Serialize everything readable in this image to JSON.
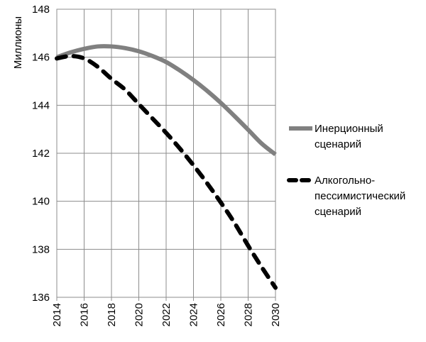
{
  "chart_data": {
    "type": "line",
    "title": "",
    "xlabel": "",
    "ylabel": "Миллионы",
    "xlim": [
      2014,
      2030
    ],
    "ylim": [
      136,
      148
    ],
    "x_ticks": [
      "2014",
      "2016",
      "2018",
      "2020",
      "2022",
      "2024",
      "2026",
      "2028",
      "2030"
    ],
    "y_ticks": [
      "136",
      "138",
      "140",
      "142",
      "144",
      "146",
      "148"
    ],
    "grid": true,
    "legend_position": "right",
    "x": [
      2014,
      2015,
      2016,
      2017,
      2018,
      2019,
      2020,
      2021,
      2022,
      2023,
      2024,
      2025,
      2026,
      2027,
      2028,
      2029,
      2030
    ],
    "series": [
      {
        "name": "Инерционный сценарий",
        "legend_lines": [
          "Инерционный",
          "сценарий"
        ],
        "color": "#808080",
        "style": "solid",
        "values": [
          146.0,
          146.2,
          146.35,
          146.45,
          146.45,
          146.38,
          146.25,
          146.05,
          145.8,
          145.45,
          145.05,
          144.6,
          144.1,
          143.55,
          142.98,
          142.4,
          141.95
        ]
      },
      {
        "name": "Алкогольно-пессимистический сценарий",
        "legend_lines": [
          "Алкогольно-",
          "пессимистический",
          "сценарий"
        ],
        "color": "#000000",
        "style": "dashed",
        "values": [
          145.95,
          146.05,
          145.95,
          145.6,
          145.1,
          144.65,
          144.05,
          143.45,
          142.85,
          142.2,
          141.5,
          140.75,
          139.95,
          139.1,
          138.15,
          137.25,
          136.4
        ]
      }
    ]
  }
}
